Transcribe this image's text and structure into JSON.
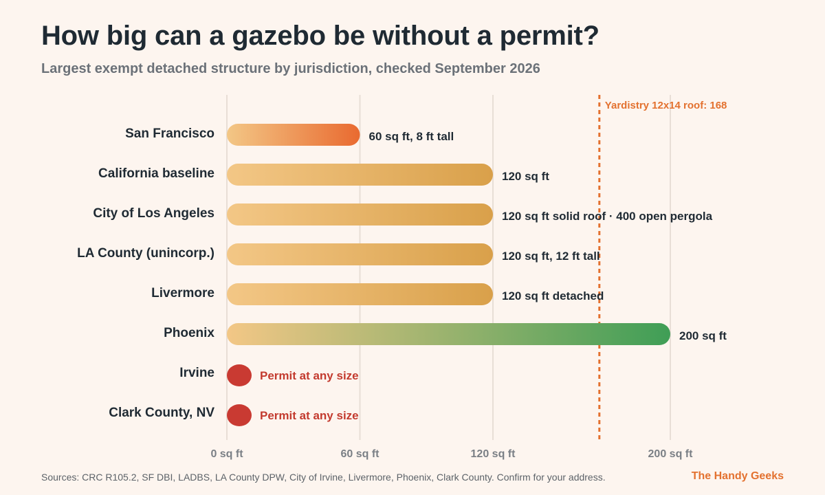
{
  "title": "How big can a gazebo be without a permit?",
  "subtitle": "Largest exempt detached structure by jurisdiction, checked September 2026",
  "footer": {
    "source": "Sources: CRC R105.2, SF DBI, LADBS, LA County DPW, City of Irvine, Livermore, Phoenix, Clark County. Confirm for your address.",
    "brand": "The Handy Geeks"
  },
  "chart_data": {
    "type": "bar",
    "orientation": "horizontal",
    "unit": "sq ft",
    "xlim": [
      0,
      200
    ],
    "x_ticks": [
      {
        "value": 0,
        "label": "0 sq ft"
      },
      {
        "value": 60,
        "label": "60 sq ft"
      },
      {
        "value": 120,
        "label": "120 sq ft"
      },
      {
        "value": 200,
        "label": "200 sq ft"
      }
    ],
    "grid": true,
    "categories": [
      "San Francisco",
      "California baseline",
      "City of Los Angeles",
      "LA County (unincorp.)",
      "Livermore",
      "Phoenix",
      "Irvine",
      "Clark County, NV"
    ],
    "values": [
      60,
      120,
      120,
      120,
      120,
      200,
      0,
      0
    ],
    "bars": [
      {
        "label": "San Francisco",
        "value": 60,
        "annotation": "60 sq ft, 8 ft tall",
        "permit_always": false,
        "color_start": "#f3c786",
        "color_end": "#e96a30"
      },
      {
        "label": "California baseline",
        "value": 120,
        "annotation": "120 sq ft",
        "permit_always": false,
        "color_start": "#f3c786",
        "color_end": "#d9a04a"
      },
      {
        "label": "City of Los Angeles",
        "value": 120,
        "annotation": "120 sq ft solid roof · 400 open pergola",
        "permit_always": false,
        "color_start": "#f3c786",
        "color_end": "#d9a04a"
      },
      {
        "label": "LA County (unincorp.)",
        "value": 120,
        "annotation": "120 sq ft, 12 ft tall",
        "permit_always": false,
        "color_start": "#f3c786",
        "color_end": "#d9a04a"
      },
      {
        "label": "Livermore",
        "value": 120,
        "annotation": "120 sq ft detached",
        "permit_always": false,
        "color_start": "#f3c786",
        "color_end": "#d9a04a"
      },
      {
        "label": "Phoenix",
        "value": 200,
        "annotation": "200 sq ft",
        "permit_always": false,
        "color_start": "#f3c786",
        "color_end": "#3f9e56"
      },
      {
        "label": "Irvine",
        "value": 0,
        "annotation": "Permit at any size",
        "permit_always": true,
        "color_start": "#c93a32",
        "color_end": "#c93a32"
      },
      {
        "label": "Clark County, NV",
        "value": 0,
        "annotation": "Permit at any size",
        "permit_always": true,
        "color_start": "#c93a32",
        "color_end": "#c93a32"
      }
    ],
    "reference_line": {
      "value": 168,
      "label": "Yardistry 12x14 roof: 168",
      "color": "#e3712f"
    },
    "colors": {
      "grid": "#e8ded6",
      "category_text": "#1f2a33",
      "value_text": "#1f2a33",
      "tick_text": "#7a7f85",
      "permit_text": "#c33a2e"
    }
  }
}
